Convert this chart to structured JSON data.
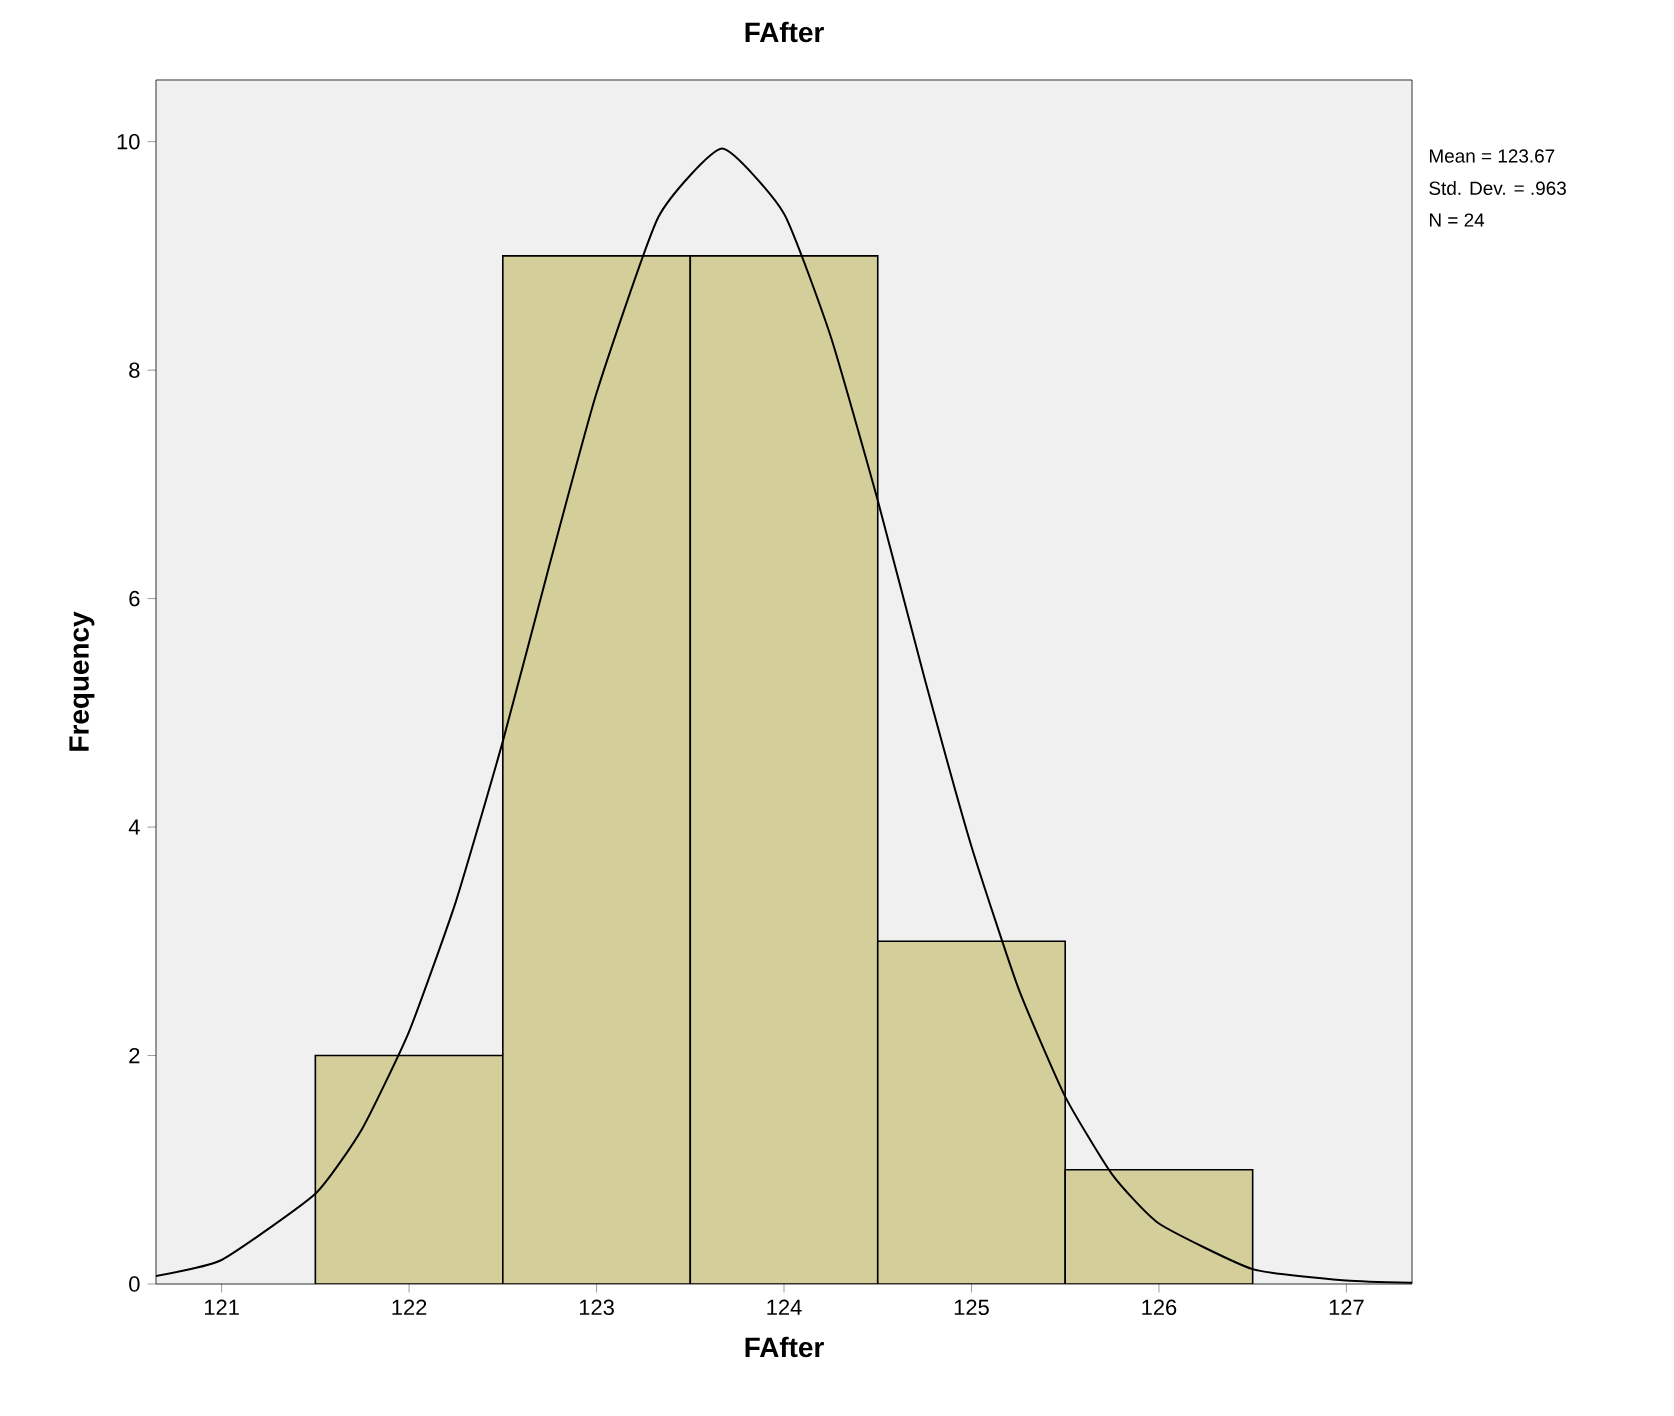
{
  "chart_data": {
    "type": "histogram",
    "title": "FAfter",
    "xlabel": "FAfter",
    "ylabel": "Frequency",
    "bins": [
      121.5,
      122.5,
      123.5,
      124.5,
      125.5,
      126.5
    ],
    "values": [
      2,
      9,
      9,
      3,
      1
    ],
    "color": "#d3ce9a",
    "series": [
      {
        "type": "line",
        "color": "#000000",
        "x": [
          120.65,
          121,
          121.5,
          121.75,
          122,
          122.25,
          122.5,
          122.75,
          123,
          123.33,
          123.67,
          124,
          124.25,
          124.5,
          124.75,
          125,
          125.25,
          125.5,
          125.75,
          126,
          126.5,
          127,
          127.35
        ],
        "values": [
          0.07,
          0.21,
          0.79,
          1.36,
          2.21,
          3.35,
          4.75,
          6.3,
          7.8,
          9.34,
          9.94,
          9.37,
          8.29,
          6.86,
          5.3,
          3.83,
          2.59,
          1.64,
          0.96,
          0.53,
          0.13,
          0.03,
          0.01
        ]
      }
    ],
    "xlim": [
      120.65,
      127.35
    ],
    "ylim": [
      0,
      10.54
    ],
    "xticks": [
      121,
      122,
      123,
      124,
      125,
      126,
      127
    ],
    "yticks": [
      0,
      2,
      4,
      6,
      8,
      10
    ],
    "annotations": [
      "Mean = 123.67",
      "Std. Dev. = .963",
      "N = 24"
    ],
    "grid": false
  }
}
